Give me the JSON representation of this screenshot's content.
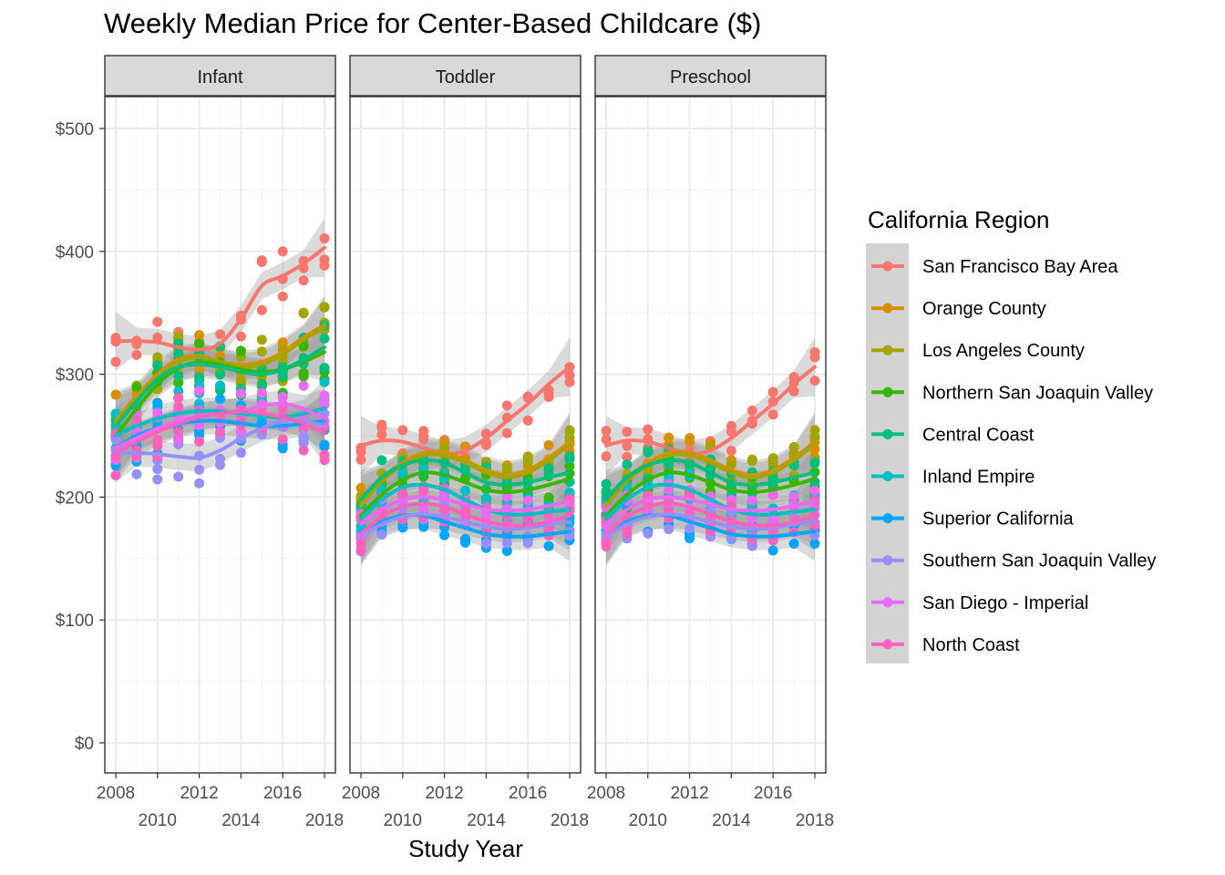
{
  "chart_data": {
    "type": "scatter",
    "title": "Weekly Median Price for Center-Based Childcare ($)",
    "xlabel": "Study Year",
    "ylabel": "",
    "facets": [
      "Infant",
      "Toddler",
      "Preschool"
    ],
    "xlim": [
      2008,
      2018
    ],
    "ylim": [
      0,
      500
    ],
    "x_ticks": [
      "2008",
      "2010",
      "2012",
      "2014",
      "2016",
      "2018"
    ],
    "y_ticks": [
      "$0",
      "$100",
      "$200",
      "$300",
      "$400",
      "$500"
    ],
    "y_tick_values": [
      0,
      100,
      200,
      300,
      400,
      500
    ],
    "x": [
      2008,
      2009,
      2010,
      2011,
      2012,
      2013,
      2014,
      2015,
      2016,
      2017,
      2018
    ],
    "smoothing": "loess with confidence band",
    "grid": true,
    "legend_position": "right",
    "legend_title": "California Region",
    "series": [
      {
        "name": "San Francisco Bay Area",
        "color": "#F8766D",
        "Infant": [
          327,
          327,
          326,
          322,
          320,
          325,
          345,
          372,
          380,
          390,
          403
        ],
        "Toddler": [
          242,
          246,
          245,
          240,
          235,
          238,
          248,
          262,
          276,
          292,
          306
        ],
        "Preschool": [
          242,
          246,
          245,
          240,
          235,
          238,
          248,
          262,
          276,
          292,
          306
        ]
      },
      {
        "name": "Orange County",
        "color": "#D89000",
        "Infant": [
          262,
          282,
          300,
          312,
          315,
          310,
          308,
          310,
          318,
          330,
          340
        ],
        "Toddler": [
          195,
          215,
          228,
          236,
          236,
          230,
          222,
          218,
          222,
          232,
          245
        ],
        "Preschool": [
          195,
          215,
          228,
          236,
          236,
          230,
          222,
          218,
          222,
          232,
          245
        ]
      },
      {
        "name": "Los Angeles County",
        "color": "#A3A500",
        "Infant": [
          260,
          280,
          298,
          310,
          314,
          310,
          306,
          308,
          316,
          328,
          338
        ],
        "Toddler": [
          193,
          213,
          226,
          234,
          234,
          228,
          220,
          216,
          220,
          230,
          243
        ],
        "Preschool": [
          193,
          213,
          226,
          234,
          234,
          228,
          220,
          216,
          220,
          230,
          243
        ]
      },
      {
        "name": "Northern San Joaquin Valley",
        "color": "#39B600",
        "Infant": [
          250,
          272,
          292,
          305,
          310,
          308,
          304,
          302,
          304,
          310,
          318
        ],
        "Toddler": [
          185,
          202,
          214,
          220,
          218,
          212,
          206,
          204,
          206,
          210,
          215
        ],
        "Preschool": [
          185,
          202,
          214,
          220,
          218,
          212,
          206,
          204,
          206,
          210,
          215
        ]
      },
      {
        "name": "Central Coast",
        "color": "#00BF7D",
        "Infant": [
          258,
          278,
          296,
          306,
          308,
          306,
          302,
          300,
          304,
          312,
          322
        ],
        "Toddler": [
          198,
          216,
          226,
          230,
          228,
          220,
          212,
          210,
          212,
          216,
          220
        ],
        "Preschool": [
          198,
          216,
          226,
          230,
          228,
          220,
          212,
          210,
          212,
          216,
          220
        ]
      },
      {
        "name": "Inland Empire",
        "color": "#00BFC4",
        "Infant": [
          250,
          258,
          264,
          268,
          270,
          270,
          268,
          266,
          265,
          268,
          272
        ],
        "Toddler": [
          182,
          198,
          208,
          210,
          206,
          198,
          190,
          186,
          186,
          188,
          190
        ],
        "Preschool": [
          182,
          198,
          208,
          210,
          206,
          198,
          190,
          186,
          186,
          188,
          190
        ]
      },
      {
        "name": "Superior California",
        "color": "#00A5FF",
        "Infant": [
          240,
          250,
          256,
          260,
          262,
          262,
          260,
          258,
          258,
          260,
          262
        ],
        "Toddler": [
          170,
          180,
          185,
          185,
          180,
          175,
          170,
          168,
          168,
          170,
          172
        ],
        "Preschool": [
          170,
          180,
          185,
          185,
          180,
          175,
          170,
          168,
          168,
          170,
          172
        ]
      },
      {
        "name": "Southern San Joaquin Valley",
        "color": "#9590FF",
        "Infant": [
          236,
          236,
          235,
          233,
          232,
          238,
          248,
          256,
          262,
          262,
          258
        ],
        "Toddler": [
          168,
          178,
          184,
          186,
          184,
          180,
          176,
          174,
          175,
          178,
          180
        ],
        "Preschool": [
          168,
          178,
          184,
          186,
          184,
          180,
          176,
          174,
          175,
          178,
          180
        ]
      },
      {
        "name": "San Diego - Imperial",
        "color": "#E76BF3",
        "Infant": [
          240,
          248,
          256,
          262,
          266,
          268,
          270,
          274,
          276,
          272,
          264
        ],
        "Toddler": [
          178,
          190,
          198,
          200,
          198,
          194,
          190,
          189,
          190,
          193,
          196
        ],
        "Preschool": [
          178,
          190,
          198,
          200,
          198,
          194,
          190,
          189,
          190,
          193,
          196
        ]
      },
      {
        "name": "North Coast",
        "color": "#FF62BC",
        "Infant": [
          236,
          245,
          253,
          260,
          265,
          268,
          270,
          268,
          265,
          260,
          252
        ],
        "Toddler": [
          170,
          184,
          192,
          195,
          192,
          186,
          180,
          177,
          177,
          180,
          185
        ],
        "Preschool": [
          170,
          184,
          192,
          195,
          192,
          186,
          180,
          177,
          177,
          180,
          185
        ]
      }
    ]
  }
}
